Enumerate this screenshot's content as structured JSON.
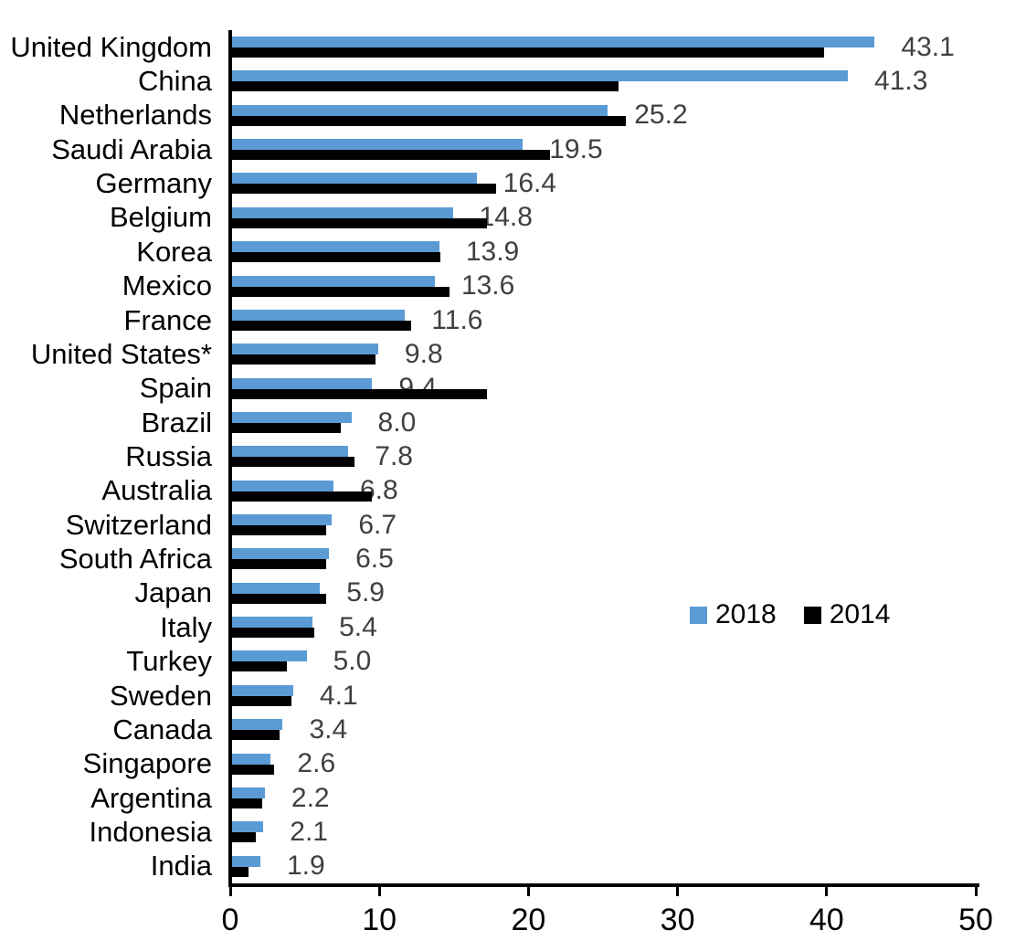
{
  "chart_data": {
    "type": "bar",
    "orientation": "horizontal",
    "title": "",
    "xlabel": "",
    "ylabel": "",
    "xlim": [
      0,
      50
    ],
    "x_ticks": [
      "0",
      "10",
      "20",
      "30",
      "40",
      "50"
    ],
    "grid": false,
    "legend_position": "middle-right",
    "categories": [
      "United Kingdom",
      "China",
      "Netherlands",
      "Saudi Arabia",
      "Germany",
      "Belgium",
      "Korea",
      "Mexico",
      "France",
      "United States*",
      "Spain",
      "Brazil",
      "Russia",
      "Australia",
      "Switzerland",
      "South Africa",
      "Japan",
      "Italy",
      "Turkey",
      "Sweden",
      "Canada",
      "Singapore",
      "Argentina",
      "Indonesia",
      "India"
    ],
    "series": [
      {
        "name": "2018",
        "color": "#5B9BD5",
        "values": [
          43.1,
          41.3,
          25.2,
          19.5,
          16.4,
          14.8,
          13.9,
          13.6,
          11.6,
          9.8,
          9.4,
          8.0,
          7.8,
          6.8,
          6.7,
          6.5,
          5.9,
          5.4,
          5.0,
          4.1,
          3.4,
          2.6,
          2.2,
          2.1,
          1.9
        ]
      },
      {
        "name": "2014",
        "color": "#000000",
        "values": [
          39.7,
          25.9,
          26.4,
          21.3,
          17.7,
          17.1,
          14.0,
          14.6,
          12.0,
          9.6,
          17.1,
          7.3,
          8.2,
          9.4,
          6.3,
          6.3,
          6.3,
          5.5,
          3.7,
          4.0,
          3.2,
          2.8,
          2.0,
          1.6,
          1.1
        ]
      }
    ],
    "data_labels": {
      "series": "2018",
      "values": [
        "43.1",
        "41.3",
        "25.2",
        "19.5",
        "16.4",
        "14.8",
        "13.9",
        "13.6",
        "11.6",
        "9.8",
        "9.4",
        "8.0",
        "7.8",
        "6.8",
        "6.7",
        "6.5",
        "5.9",
        "5.4",
        "5.0",
        "4.1",
        "3.4",
        "2.6",
        "2.2",
        "2.1",
        "1.9"
      ]
    }
  },
  "colors": {
    "series_2018": "#5B9BD5",
    "series_2014": "#000000",
    "data_label_text": "#404040",
    "axis": "#000000"
  }
}
